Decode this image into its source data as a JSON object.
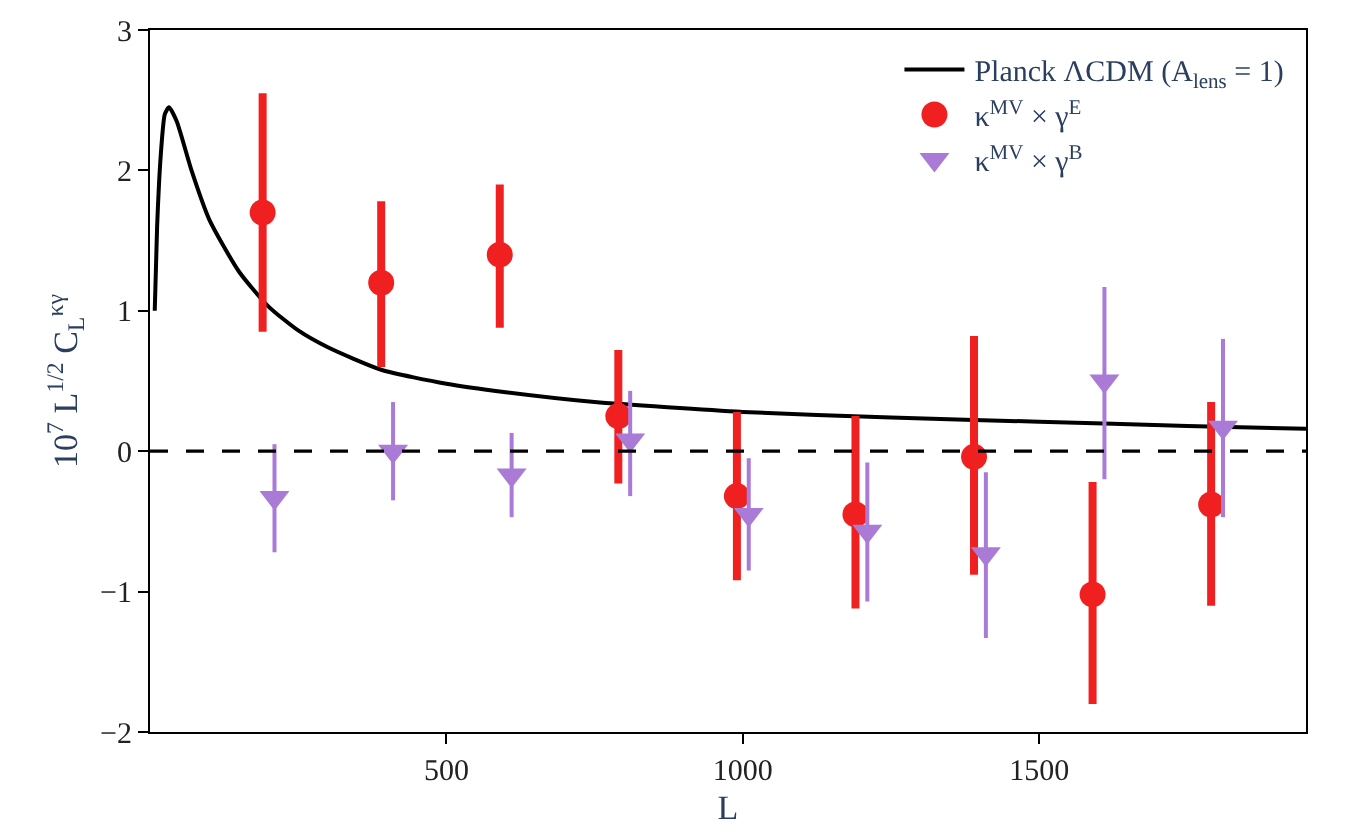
{
  "chart_data": {
    "type": "scatter",
    "xlabel": "L",
    "ylabel": "10$^{7}$ L$^{1/2}$ C$_{L}$$^{κγ}$",
    "xlim": [
      0,
      1950
    ],
    "ylim": [
      -2,
      3
    ],
    "xticks": [
      500,
      1000,
      1500
    ],
    "yticks": [
      -2,
      -1,
      0,
      1,
      2,
      3
    ],
    "legend": "top right",
    "ref_lines": [
      {
        "axis": "y",
        "value": 0,
        "color": "#000000",
        "line_style": "dashed"
      }
    ],
    "series": [
      {
        "name": "Planck ΛCDM (A$_{lens}$ = 1)",
        "type": "line",
        "color": "#000000",
        "marker": "none",
        "line_style": "solid",
        "x": [
          8,
          12,
          18,
          25,
          32,
          45,
          70,
          100,
          150,
          200,
          250,
          300,
          390,
          500,
          600,
          750,
          1000,
          1250,
          1500,
          1750,
          1950
        ],
        "values": [
          1.0,
          1.6,
          2.1,
          2.4,
          2.45,
          2.35,
          2.0,
          1.65,
          1.28,
          1.03,
          0.86,
          0.74,
          0.58,
          0.48,
          0.42,
          0.35,
          0.28,
          0.24,
          0.21,
          0.18,
          0.16
        ]
      },
      {
        "name": "κ$^{MV}$ × γ$^{E}$",
        "color": "#f02020",
        "marker": "circle",
        "x": [
          190,
          390,
          590,
          790,
          990,
          1190,
          1390,
          1590,
          1790
        ],
        "values": [
          1.7,
          1.2,
          1.4,
          0.25,
          -0.32,
          -0.45,
          -0.04,
          -1.02,
          -0.38
        ],
        "errors": [
          [
            0.85,
            2.55
          ],
          [
            0.6,
            1.78
          ],
          [
            0.88,
            1.9
          ],
          [
            -0.23,
            0.72
          ],
          [
            -0.92,
            0.28
          ],
          [
            -1.12,
            0.25
          ],
          [
            -0.88,
            0.82
          ],
          [
            -1.8,
            -0.22
          ],
          [
            -1.1,
            0.35
          ]
        ]
      },
      {
        "name": "κ$^{MV}$ × γ$^{B}$",
        "color": "#a97bd6",
        "marker": "triangle",
        "x": [
          210,
          410,
          610,
          810,
          1010,
          1210,
          1410,
          1610,
          1810
        ],
        "values": [
          -0.33,
          0.0,
          -0.17,
          0.08,
          -0.45,
          -0.57,
          -0.73,
          0.5,
          0.17
        ],
        "errors": [
          [
            -0.72,
            0.05
          ],
          [
            -0.35,
            0.35
          ],
          [
            -0.47,
            0.13
          ],
          [
            -0.32,
            0.43
          ],
          [
            -0.85,
            -0.05
          ],
          [
            -1.07,
            -0.08
          ],
          [
            -1.33,
            -0.15
          ],
          [
            -0.2,
            1.17
          ],
          [
            -0.47,
            0.8
          ]
        ]
      }
    ]
  }
}
